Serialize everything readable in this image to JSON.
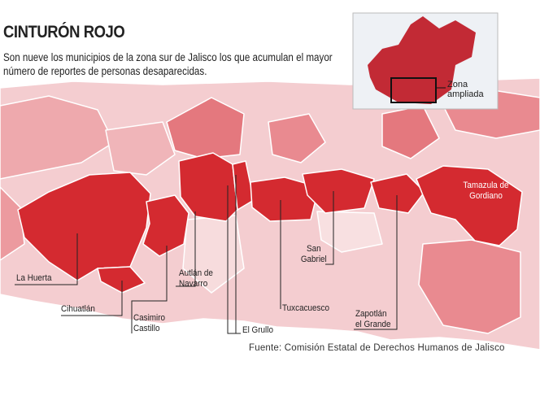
{
  "header": {
    "title": "CINTURÓN ROJO",
    "subtitle": "Son nueve los municipios de la zona sur de Jalisco los que acumulan el mayor número de reportes de personas desaparecidas."
  },
  "municipalities": [
    {
      "id": "la-huerta",
      "label": "La Huerta"
    },
    {
      "id": "cihuatlan",
      "label": "Cihuatlán"
    },
    {
      "id": "casimiro-castillo",
      "label": "Casimiro Castillo"
    },
    {
      "id": "autlan",
      "label": "Autlán de Navarro"
    },
    {
      "id": "el-grullo",
      "label": "El Grullo"
    },
    {
      "id": "tuxcacuesco",
      "label": "Tuxcacuesco"
    },
    {
      "id": "san-gabriel",
      "label": "San Gabriel"
    },
    {
      "id": "zapotlan",
      "label": "Zapotlán el Grande"
    },
    {
      "id": "tamazula",
      "label": "Tamazula de Gordiano"
    }
  ],
  "inset": {
    "label": "Zona ampliada"
  },
  "source": "Fuente: Comisión Estatal de Derechos Humanos de Jalisco",
  "colors": {
    "highlight": "#d42a30",
    "medium": "#e8878c",
    "light": "#f5cfd1",
    "border": "#ffffff"
  }
}
